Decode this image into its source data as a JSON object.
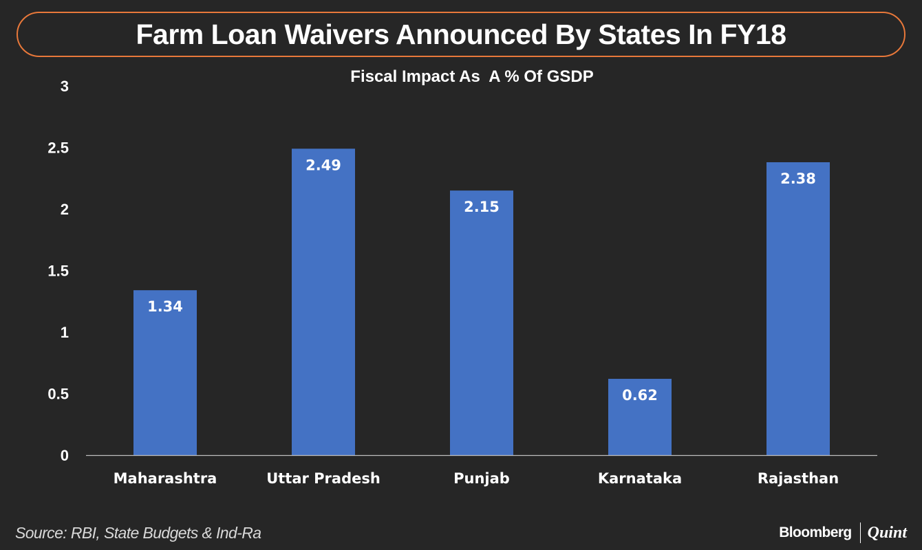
{
  "header": {
    "title": "Farm Loan Waivers Announced By States In FY18"
  },
  "footer": {
    "source": "Source: RBI, State Budgets & Ind-Ra",
    "brand_primary": "Bloomberg",
    "brand_secondary": "Quint"
  },
  "colors": {
    "background": "#262626",
    "bar": "#4472c4",
    "title_border": "#e8783a",
    "text": "#ffffff"
  },
  "chart_data": {
    "type": "bar",
    "title": "",
    "subtitle": "Fiscal Impact As  A % Of GSDP",
    "xlabel": "",
    "ylabel": "",
    "categories": [
      "Maharashtra",
      "Uttar Pradesh",
      "Punjab",
      "Karnataka",
      "Rajasthan"
    ],
    "values": [
      1.34,
      2.49,
      2.15,
      0.62,
      2.38
    ],
    "data_labels": [
      "1.34",
      "2.49",
      "2.15",
      "0.62",
      "2.38"
    ],
    "ylim": [
      0,
      3
    ],
    "yticks": [
      0,
      0.5,
      1,
      1.5,
      2,
      2.5,
      3
    ],
    "ytick_labels": [
      "0",
      "0.5",
      "1",
      "1.5",
      "2",
      "2.5",
      "3"
    ],
    "grid": false,
    "legend": "none"
  }
}
